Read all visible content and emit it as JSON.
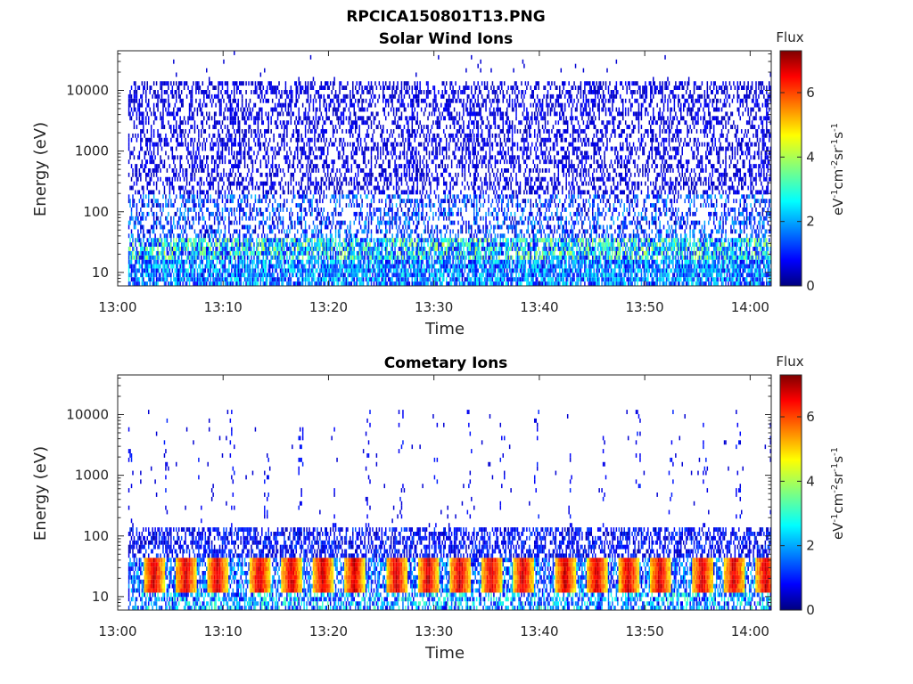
{
  "figure": {
    "title": "RPCICA150801T13.PNG"
  },
  "colormap": {
    "name": "jet",
    "range": [
      0,
      7.3
    ],
    "ticks": [
      0,
      2,
      4,
      6
    ],
    "colors": [
      "#00007f",
      "#0000ff",
      "#007fff",
      "#00ffff",
      "#7fff7f",
      "#ffff00",
      "#ff7f00",
      "#ff0000",
      "#7f0000"
    ]
  },
  "chart_data": [
    {
      "type": "heatmap",
      "title": "Solar Wind Ions",
      "xlabel": "Time",
      "ylabel": "Energy (eV)",
      "yscale": "log",
      "ylim": [
        6,
        45000
      ],
      "xlim": [
        "13:00",
        "14:02"
      ],
      "x_ticks": [
        "13:00",
        "13:10",
        "13:20",
        "13:30",
        "13:40",
        "13:50",
        "14:00"
      ],
      "y_ticks": [
        10,
        100,
        1000,
        10000
      ],
      "y_tick_labels": [
        "10",
        "100",
        "1000",
        "10000"
      ],
      "data_start": "13:01",
      "data_end": "14:02",
      "energy_range": [
        6,
        15000
      ],
      "colorbar": {
        "title": "Flux",
        "label": "eV-1cm-2sr-1s-1",
        "ticks": [
          0,
          2,
          4,
          6
        ]
      },
      "populations": [
        {
          "energy_range": [
            6,
            40
          ],
          "flux": 3.0,
          "note": "low-energy continuous band"
        },
        {
          "energy_range": [
            40,
            15000
          ],
          "flux": 0.8,
          "note": "sparse background counts"
        }
      ],
      "grid": false
    },
    {
      "type": "heatmap",
      "title": "Cometary Ions",
      "xlabel": "Time",
      "ylabel": "Energy (eV)",
      "yscale": "log",
      "ylim": [
        6,
        45000
      ],
      "xlim": [
        "13:00",
        "14:02"
      ],
      "x_ticks": [
        "13:00",
        "13:10",
        "13:20",
        "13:30",
        "13:40",
        "13:50",
        "14:00"
      ],
      "y_ticks": [
        10,
        100,
        1000,
        10000
      ],
      "y_tick_labels": [
        "10",
        "100",
        "1000",
        "10000"
      ],
      "data_start": "13:01",
      "data_end": "14:02",
      "colorbar": {
        "title": "Flux",
        "label": "eV-1cm-2sr-1s-1",
        "ticks": [
          0,
          2,
          4,
          6
        ]
      },
      "populations": [
        {
          "energy_range": [
            12,
            45
          ],
          "flux": 5.5,
          "note": "periodic hot bursts, ~every 3 min"
        },
        {
          "energy_range": [
            50,
            150
          ],
          "flux": 1.0,
          "note": "dense low-flux band"
        },
        {
          "energy_range": [
            150,
            12000
          ],
          "flux": 0.8,
          "note": "very sparse counts"
        }
      ],
      "burst_times": [
        "13:03",
        "13:06",
        "13:09",
        "13:13",
        "13:16",
        "13:19",
        "13:22",
        "13:26",
        "13:29",
        "13:32",
        "13:35",
        "13:38",
        "13:42",
        "13:45",
        "13:48",
        "13:51",
        "13:55",
        "13:58",
        "14:01"
      ],
      "grid": false
    }
  ]
}
